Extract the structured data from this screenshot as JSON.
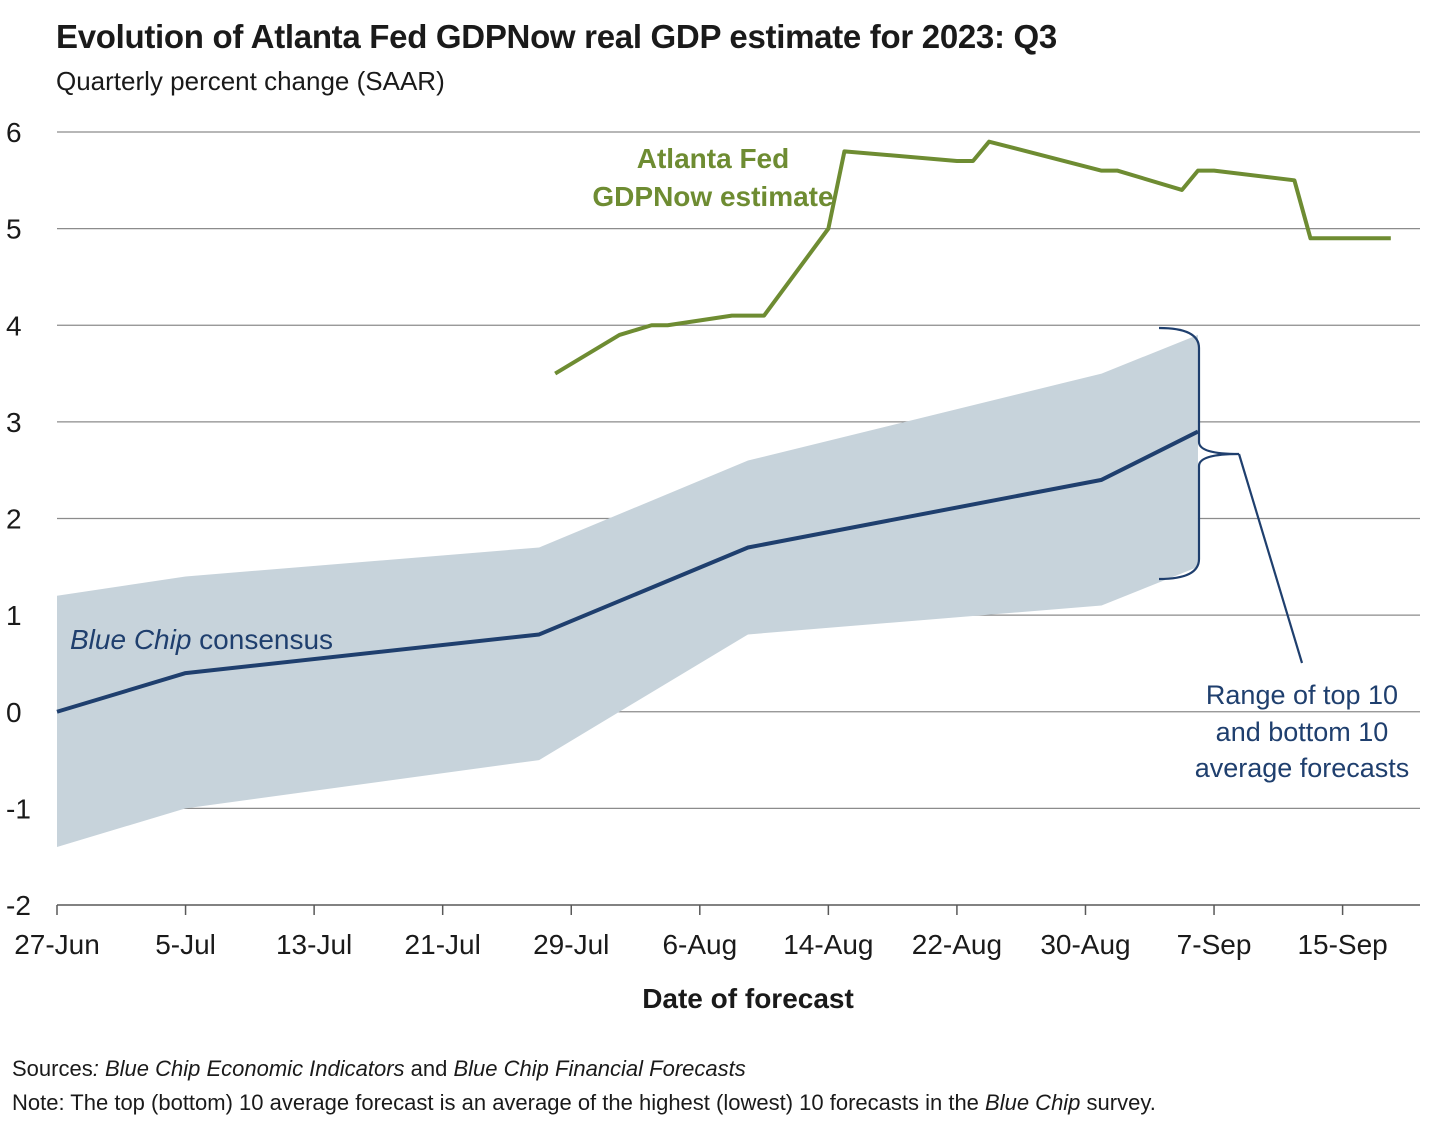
{
  "chart_data": {
    "type": "line",
    "title": "Evolution of Atlanta Fed GDPNow real GDP estimate for 2023: Q3",
    "subtitle": "Quarterly percent change (SAAR)",
    "xlabel": "Date of forecast",
    "ylabel": "",
    "ylim": [
      -2,
      6
    ],
    "yticks": [
      "-2",
      "-1",
      "0",
      "1",
      "2",
      "3",
      "4",
      "5",
      "6"
    ],
    "xticks": [
      "27-Jun",
      "5-Jul",
      "13-Jul",
      "21-Jul",
      "29-Jul",
      "6-Aug",
      "14-Aug",
      "22-Aug",
      "30-Aug",
      "7-Sep",
      "15-Sep"
    ],
    "grid": "horizontal",
    "series": [
      {
        "name": "Atlanta Fed GDPNow estimate",
        "color": "#6e8c32",
        "points": [
          [
            "2023-07-28",
            3.5
          ],
          [
            "2023-08-01",
            3.9
          ],
          [
            "2023-08-03",
            4.0
          ],
          [
            "2023-08-04",
            4.0
          ],
          [
            "2023-08-08",
            4.1
          ],
          [
            "2023-08-10",
            4.1
          ],
          [
            "2023-08-14",
            5.0
          ],
          [
            "2023-08-15",
            5.8
          ],
          [
            "2023-08-22",
            5.7
          ],
          [
            "2023-08-23",
            5.7
          ],
          [
            "2023-08-24",
            5.9
          ],
          [
            "2023-08-31",
            5.6
          ],
          [
            "2023-09-01",
            5.6
          ],
          [
            "2023-09-05",
            5.4
          ],
          [
            "2023-09-06",
            5.6
          ],
          [
            "2023-09-07",
            5.6
          ],
          [
            "2023-09-12",
            5.5
          ],
          [
            "2023-09-13",
            4.9
          ],
          [
            "2023-09-18",
            4.9
          ]
        ]
      },
      {
        "name": "Blue Chip consensus",
        "color": "#1f3f6e",
        "points": [
          [
            "2023-06-27",
            0.0
          ],
          [
            "2023-07-05",
            0.4
          ],
          [
            "2023-07-27",
            0.8
          ],
          [
            "2023-08-09",
            1.7
          ],
          [
            "2023-08-31",
            2.4
          ],
          [
            "2023-09-06",
            2.9
          ]
        ]
      },
      {
        "name": "Range of top 10 and bottom 10 average forecasts",
        "type": "band",
        "color": "#c7d3db",
        "points": [
          [
            "2023-06-27",
            -1.4,
            1.2
          ],
          [
            "2023-07-05",
            -1.0,
            1.4
          ],
          [
            "2023-07-27",
            -0.5,
            1.7
          ],
          [
            "2023-08-09",
            0.8,
            2.6
          ],
          [
            "2023-08-31",
            1.1,
            3.5
          ],
          [
            "2023-09-06",
            1.5,
            3.9
          ]
        ]
      }
    ],
    "annotations": {
      "gdpnow_line1": "Atlanta Fed",
      "gdpnow_line2": "GDPNow estimate",
      "consensus_italic": "Blue Chip",
      "consensus_rest": " consensus",
      "range_line1": "Range of top 10",
      "range_line2": "and bottom 10",
      "range_line3": "average forecasts"
    }
  },
  "notes": {
    "sources_label": "Sources",
    "sources_colon": ":",
    "sources_part1": "Blue Chip Economic Indicators",
    "sources_part2": " and ",
    "sources_part3": "Blue Chip Financial Forecasts",
    "note_label": "Note:",
    "note_part1": " The top (bottom) 10 average forecast is an average of the highest (lowest) 10 forecasts in the ",
    "note_part2": "Blue Chip",
    "note_part3": " survey."
  }
}
